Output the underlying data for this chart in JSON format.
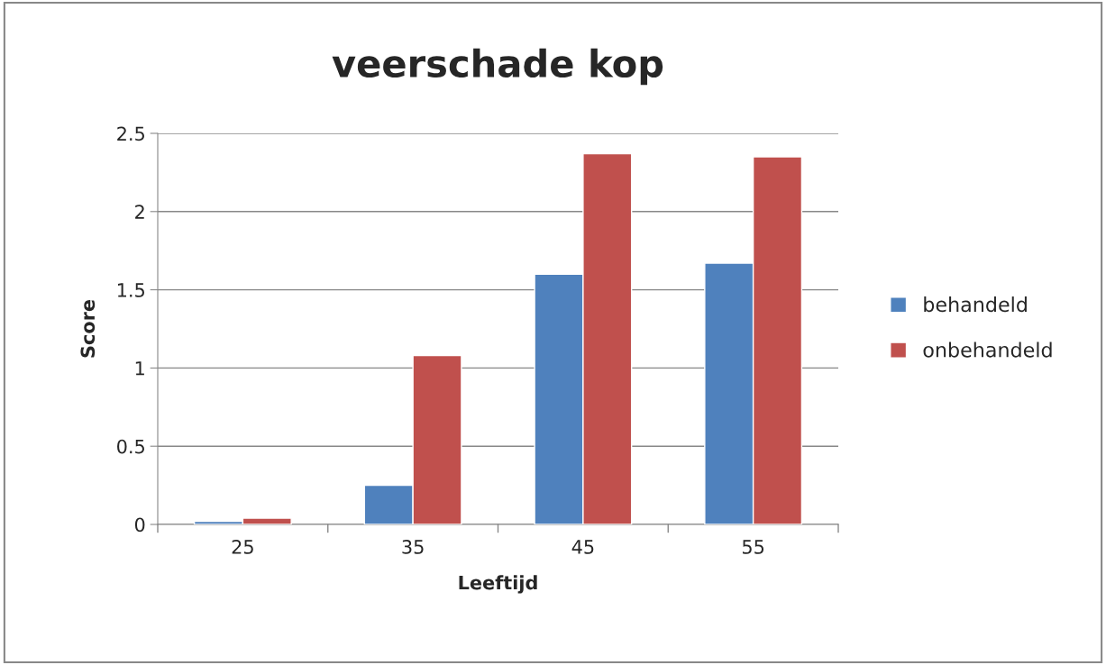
{
  "chart_data": {
    "type": "bar",
    "title": "veerschade kop",
    "xlabel": "Leeftijd",
    "ylabel": "Score",
    "categories": [
      "25",
      "35",
      "45",
      "55"
    ],
    "series": [
      {
        "name": "behandeld",
        "color": "#4f81bd",
        "values": [
          0.02,
          0.25,
          1.6,
          1.67
        ]
      },
      {
        "name": "onbehandeld",
        "color": "#c0504d",
        "values": [
          0.04,
          1.08,
          2.37,
          2.35
        ]
      }
    ],
    "ylim": [
      0,
      2.5
    ],
    "yticks": [
      0,
      0.5,
      1,
      1.5,
      2,
      2.5
    ],
    "grid": "y",
    "legend": "right"
  }
}
